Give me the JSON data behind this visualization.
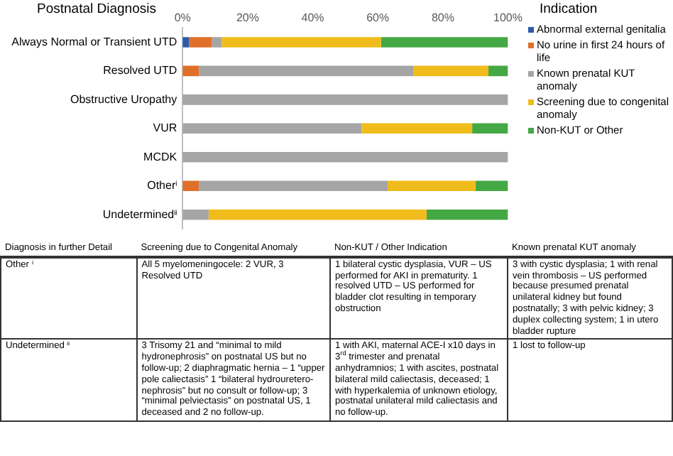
{
  "chart_data": {
    "type": "bar",
    "orientation": "horizontal",
    "stacked": true,
    "ylabel": "Postnatal Diagnosis",
    "legend_title": "Indication",
    "legend": "right",
    "categories": [
      "Always Normal or Transient UTD",
      "Resolved UTD",
      "Obstructive Uropathy",
      "VUR",
      "MCDK",
      "Otherⁱ",
      "Undeterminedⁱⁱ"
    ],
    "series": [
      {
        "name": "Abnormal external genitalia",
        "color": "#2e5aa8",
        "values": [
          2,
          0,
          0,
          0,
          0,
          0,
          0
        ]
      },
      {
        "name": "No urine in first 24 hours of life",
        "color": "#e07028",
        "values": [
          7,
          5,
          0,
          0,
          0,
          5,
          0
        ]
      },
      {
        "name": "Known prenatal KUT anomaly",
        "color": "#a5a5a5",
        "values": [
          3,
          66,
          100,
          55,
          100,
          58,
          8
        ]
      },
      {
        "name": "Screening due to congenital anomaly",
        "color": "#f0bc1c",
        "values": [
          49,
          23,
          0,
          34,
          0,
          27,
          67
        ]
      },
      {
        "name": "Non-KUT or Other",
        "color": "#44a844",
        "values": [
          39,
          6,
          0,
          11,
          0,
          10,
          25
        ]
      }
    ],
    "xlim": [
      0,
      100
    ],
    "xticks": [
      {
        "value": 0,
        "label": "0%"
      },
      {
        "value": 20,
        "label": "20%"
      },
      {
        "value": 40,
        "label": "40%"
      },
      {
        "value": 60,
        "label": "60%"
      },
      {
        "value": 80,
        "label": "80%"
      },
      {
        "value": 100,
        "label": "100%"
      }
    ],
    "grid": false,
    "annotations": [
      "Diagnosis in further Detail",
      "Screening due to Congenital Anomaly",
      "Non-KUT / Other Indication",
      "Known prenatal KUT anomaly",
      "Other ⁱ",
      "All 5 myelomeningocele: 2 VUR, 3 Resolved UTD",
      "1 bilateral cystic dysplasia, VUR – US performed for AKI in prematurity. 1 resolved UTD – US performed for bladder clot resulting in temporary obstruction",
      "3 with cystic dysplasia; 1 with renal vein thrombosis – US performed because presumed prenatal unilateral kidney but found postnatally; 3 with pelvic kidney; 3 duplex collecting system; 1 in utero bladder rupture",
      "Undetermined ⁱⁱ",
      "3 Trisomy 21 and “minimal to mild hydronephrosis” on postnatal US but no follow-up; 2 diaphragmatic hernia – 1 “upper pole caliectasis” 1 “bilateral hydrouretero-nephrosis” but no consult or follow-up; 3 “minimal pelviectasis” on postnatal US, 1 deceased and 2 no follow-up.",
      "1 with AKI, maternal ACE-I x10 days in 3$^{rd}$ trimester and prenatal anhydramnios; 1 with ascites, postnatal bilateral mild caliectasis, deceased; 1 with hyperkalemia of unknown etiology, postnatal unilateral mild caliectasis and no follow-up.",
      "1 lost to follow-up"
    ]
  }
}
